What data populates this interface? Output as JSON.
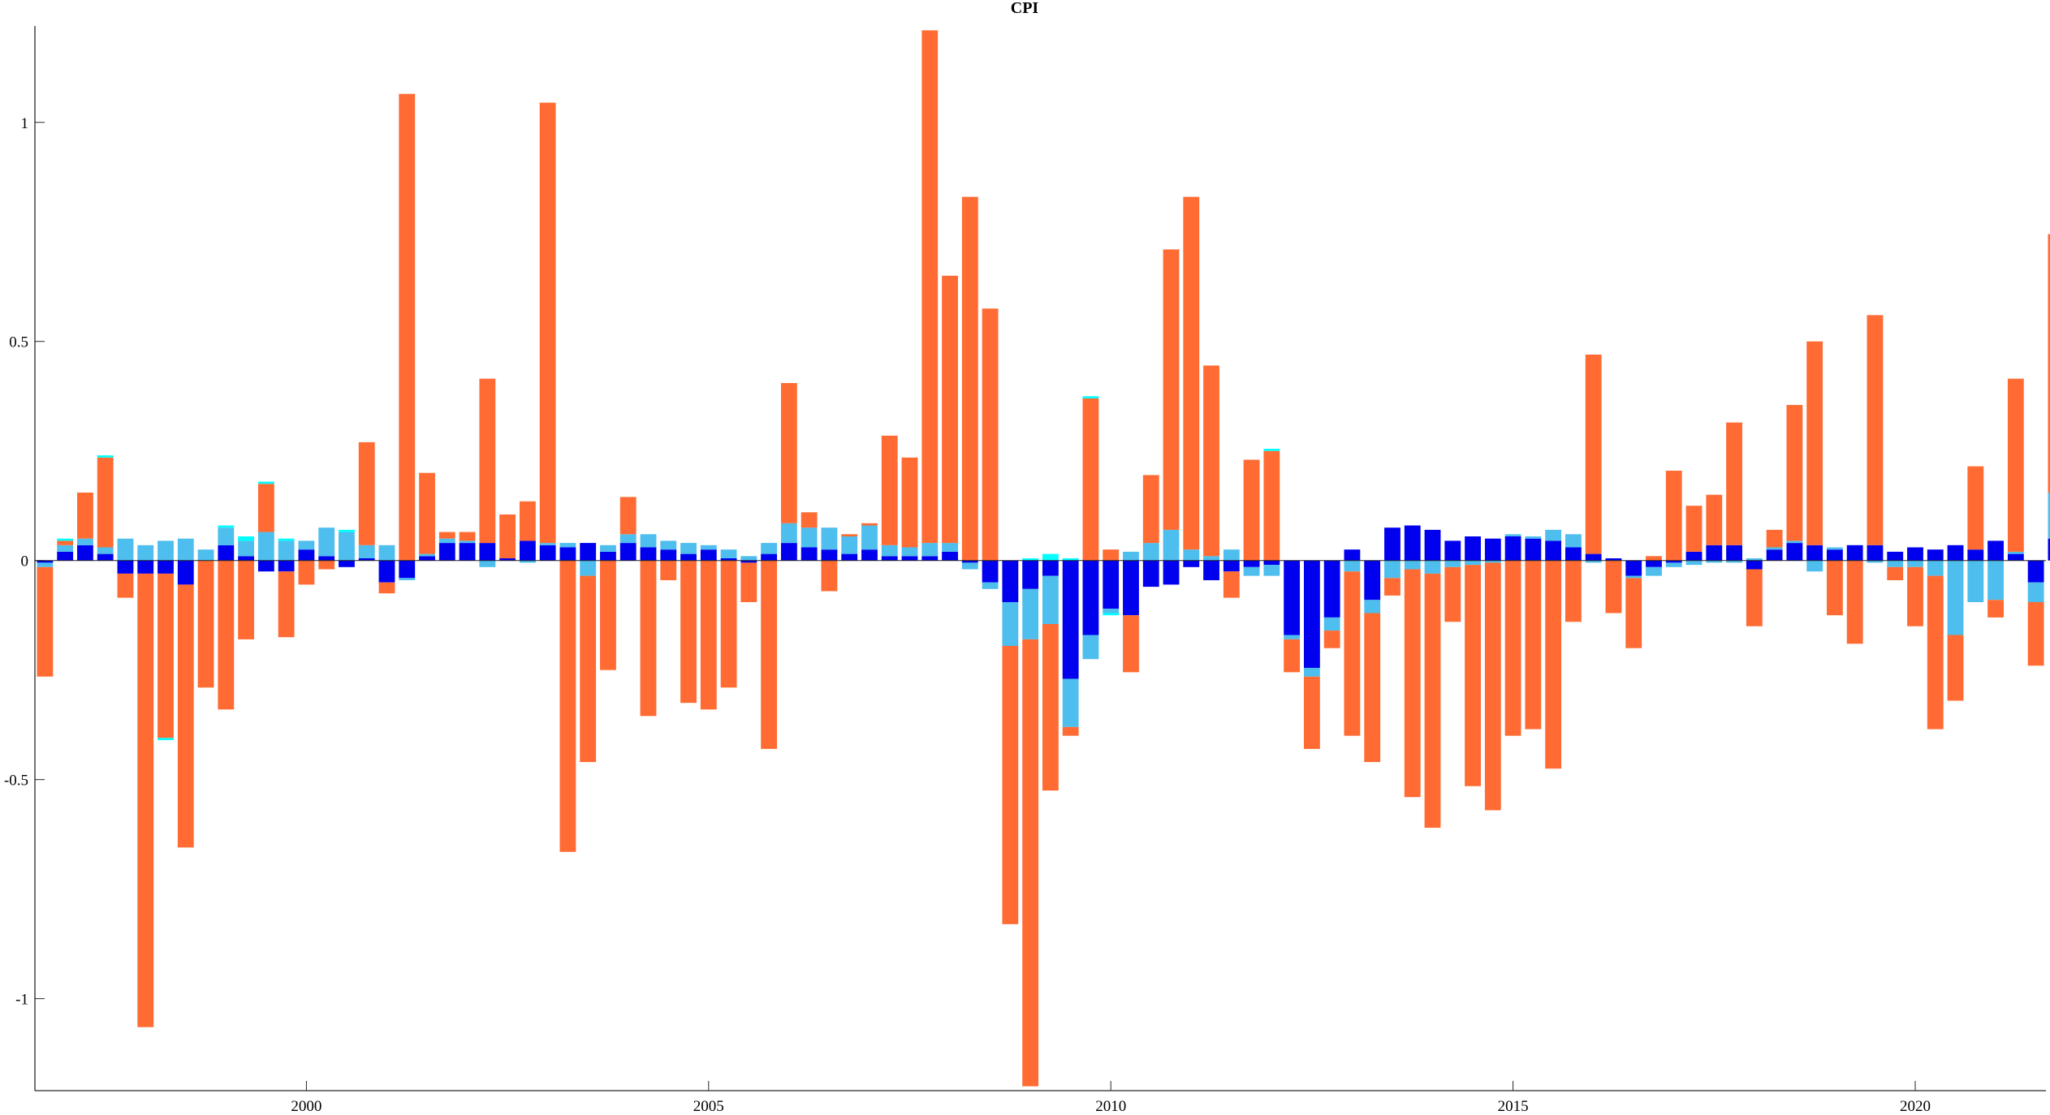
{
  "chart_data": {
    "type": "bar",
    "stacked": true,
    "title": "CPI",
    "xlabel": "",
    "ylabel": "",
    "x_start": 1996.75,
    "x_step": 0.25,
    "xlim": [
      1996.625,
      2021.625
    ],
    "ylim": [
      -1.21,
      1.22
    ],
    "x_ticks": [
      2000,
      2005,
      2010,
      2015,
      2020
    ],
    "x_tick_labels": [
      "2000",
      "2005",
      "2010",
      "2015",
      "2020"
    ],
    "y_ticks": [
      -1,
      -0.5,
      0,
      0.5,
      1
    ],
    "y_tick_labels": [
      "-1",
      "-0.5",
      "0",
      "0.5",
      "1"
    ],
    "grid": false,
    "legend": "none",
    "series_colors": [
      "#0000EE",
      "#4DBEEE",
      "#FF6B33",
      "#00FFFF"
    ],
    "series": [
      {
        "values": [
          -0.005,
          0.02,
          0.035,
          0.015,
          -0.03,
          -0.03,
          -0.03,
          -0.055,
          0,
          0.035,
          0.01,
          -0.025,
          -0.025,
          0.025,
          0.01,
          -0.015,
          0.005,
          -0.05,
          -0.04,
          0.01,
          0.04,
          0.04,
          0.04,
          0.005,
          0.045,
          0.035,
          0.03,
          0.04,
          0.02,
          0.04,
          0.03,
          0.025,
          0.015,
          0.025,
          0.005,
          -0.005,
          0.015,
          0.04,
          0.03,
          0.025,
          0.015,
          0.025,
          0.01,
          0.01,
          0.01,
          0.02,
          -0.005,
          -0.05,
          -0.095,
          -0.065,
          -0.035,
          -0.27,
          -0.17,
          -0.11,
          -0.125,
          -0.06,
          -0.055,
          -0.015,
          -0.045,
          -0.025,
          -0.015,
          -0.01,
          -0.17,
          -0.245,
          -0.13,
          0.025,
          -0.09,
          0.075,
          0.08,
          0.07,
          0.045,
          0.055,
          0.05,
          0.055,
          0.05,
          0.045,
          0.03,
          0.015,
          0.005,
          -0.035,
          -0.015,
          -0.005,
          0.02,
          0.035,
          0.035,
          -0.02,
          0.025,
          0.04,
          0.035,
          0.025,
          0.035,
          0.035,
          0.02,
          0.03,
          0.025,
          0.035,
          0.025,
          0.045,
          0.015,
          -0.05,
          0.05,
          0.05
        ]
      },
      {
        "values": [
          -0.01,
          0.015,
          0.015,
          0.015,
          0.05,
          0.035,
          0.045,
          0.05,
          0.025,
          0.04,
          0.035,
          0.065,
          0.045,
          0.02,
          0.065,
          0.065,
          0.03,
          0.035,
          -0.005,
          0.005,
          0.01,
          0.005,
          -0.015,
          0,
          -0.005,
          0.005,
          0.01,
          -0.035,
          0.015,
          0.02,
          0.03,
          0.02,
          0.025,
          0.01,
          0.02,
          0.01,
          0.025,
          0.045,
          0.045,
          0.05,
          0.04,
          0.055,
          0.025,
          0.02,
          0.03,
          0.02,
          -0.015,
          -0.015,
          -0.1,
          -0.115,
          -0.11,
          -0.11,
          -0.055,
          -0.01,
          0.02,
          0.04,
          0.07,
          0.025,
          0.01,
          0.025,
          -0.02,
          -0.025,
          -0.01,
          -0.02,
          -0.03,
          -0.025,
          -0.03,
          -0.04,
          -0.02,
          -0.03,
          -0.015,
          -0.01,
          -0.005,
          0.005,
          0.005,
          0.025,
          0.03,
          -0.005,
          0,
          -0.005,
          -0.02,
          -0.01,
          -0.01,
          -0.005,
          -0.005,
          0.005,
          0.005,
          0.005,
          -0.025,
          0.005,
          0,
          -0.005,
          -0.015,
          -0.015,
          -0.035,
          -0.17,
          -0.095,
          -0.09,
          0.005,
          -0.045,
          0.105,
          0
        ]
      },
      {
        "values": [
          -0.25,
          0.01,
          0.105,
          0.205,
          -0.055,
          -1.035,
          -0.375,
          -0.6,
          -0.29,
          -0.34,
          -0.18,
          0.11,
          -0.15,
          -0.055,
          -0.02,
          0,
          0.235,
          -0.025,
          1.065,
          0.185,
          0.015,
          0.02,
          0.375,
          0.1,
          0.09,
          1.005,
          -0.665,
          -0.425,
          -0.25,
          0.085,
          -0.355,
          -0.045,
          -0.325,
          -0.34,
          -0.29,
          -0.09,
          -0.43,
          0.32,
          0.035,
          -0.07,
          0.005,
          0.005,
          0.25,
          0.205,
          1.17,
          0.61,
          0.83,
          0.575,
          -0.635,
          -1.02,
          -0.38,
          -0.02,
          0.37,
          0.025,
          -0.13,
          0.155,
          0.64,
          0.805,
          0.435,
          -0.06,
          0.23,
          0.25,
          -0.075,
          -0.165,
          -0.04,
          -0.375,
          -0.34,
          -0.04,
          -0.52,
          -0.58,
          -0.125,
          -0.505,
          -0.565,
          -0.4,
          -0.385,
          -0.475,
          -0.14,
          0.455,
          -0.12,
          -0.16,
          0.01,
          0.205,
          0.105,
          0.115,
          0.28,
          -0.13,
          0.04,
          0.31,
          0.465,
          -0.125,
          -0.19,
          0.525,
          -0.03,
          -0.135,
          -0.35,
          -0.15,
          0.19,
          -0.04,
          0.395,
          -0.145,
          0.59
        ]
      },
      {
        "values": [
          0,
          0.005,
          0,
          0.005,
          0,
          0,
          -0.005,
          0,
          0,
          0.005,
          0.01,
          0.005,
          0.005,
          0,
          0,
          0.005,
          0,
          0,
          0,
          0,
          0,
          0,
          0,
          0,
          0,
          0,
          0,
          0,
          0,
          0,
          0,
          0,
          0,
          0,
          0,
          0,
          0,
          0,
          0,
          0,
          0,
          0,
          0,
          0,
          0,
          0,
          0,
          0,
          0,
          0.005,
          0.015,
          0.005,
          0.005,
          -0.005,
          0,
          0,
          0,
          0,
          0,
          0,
          0,
          0.005,
          0,
          0,
          0,
          0,
          0,
          0,
          0,
          0,
          0,
          0,
          0,
          0,
          0,
          0,
          0,
          0,
          0,
          0,
          0,
          0,
          0,
          0,
          0,
          0,
          0,
          0,
          0,
          0,
          0,
          0,
          0,
          0,
          0,
          0,
          0,
          0,
          0,
          0,
          0,
          0
        ]
      }
    ]
  }
}
